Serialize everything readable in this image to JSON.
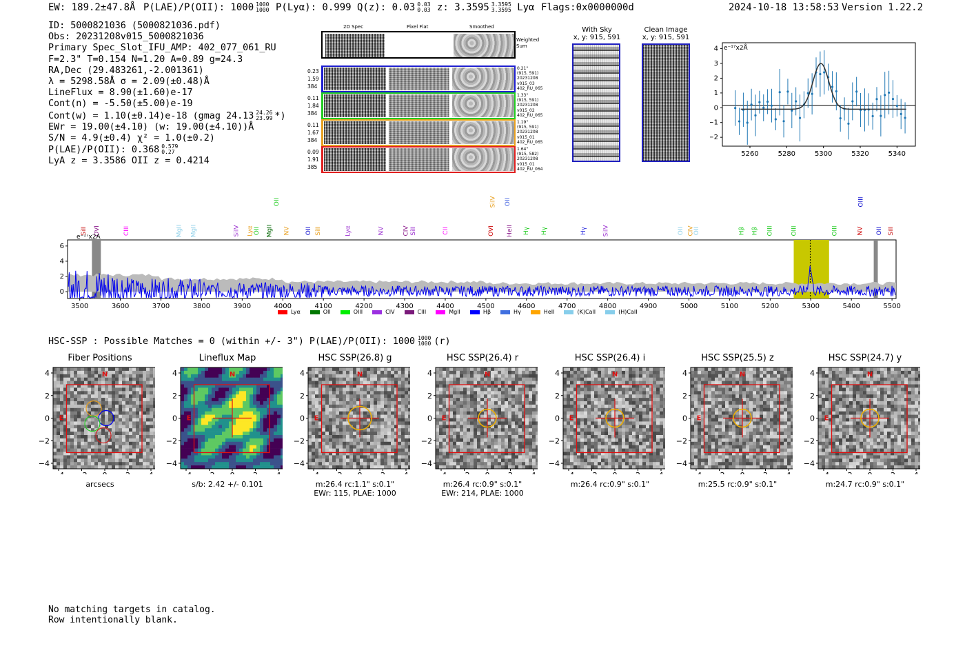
{
  "header": {
    "ew": "EW: 189.2±47.8Å",
    "plae_label": "P(LAE)/P(OII): 1000",
    "plae_hi": "1000",
    "plae_lo": "1000",
    "plya": "P(Lyα): 0.999",
    "qz_label": "Q(z): 0.03",
    "qz_hi": "0.03",
    "qz_lo": "0.03",
    "z_label": "z: 3.3595",
    "z_hi": "3.3595",
    "z_lo": "3.3595",
    "z_line": "Lyα",
    "flags": "Flags:0x0000000d",
    "timestamp": "2024-10-18 13:58:53",
    "version": "Version 1.22.2"
  },
  "info": {
    "id": "ID: 5000821036 (5000821036.pdf)",
    "obs": "Obs: 20231208v015_5000821036",
    "primary": "Primary Spec_Slot_IFU_AMP: 402_077_061_RU",
    "params": "F=2.3\"  T=0.154  N=1.20  A=0.89  g=24.3",
    "radec": "RA,Dec (29.483261,-2.001361)",
    "lambda": "λ = 5298.58Å   σ = 2.09(±0.48)Å",
    "lineflux": "LineFlux = 8.90(±1.60)e-17",
    "contn": "Cont(n) = -5.50(±5.00)e-19",
    "contw": "Cont(w) = 1.10(±0.14)e-18 (gmag 24.13",
    "contw_hi": "24.26",
    "contw_lo": "23.99",
    "contw_end": "*)",
    "ewr": "EWr = 19.00(±4.10) (w: 19.00(±4.10))Å",
    "sn": "S/N = 4.9(±0.4)  χ² = 1.0(±0.2)",
    "plae": "P(LAE)/P(OII): 0.368",
    "plae_hi": "0.579",
    "plae_lo": "0.27",
    "lya": "LyA z = 3.3586  OII z = 0.4214"
  },
  "cutouts": {
    "col_2d": "2D Spec",
    "col_flat": "Pixel Flat",
    "col_smooth": "Smoothed",
    "weighted": "Weighted\nSum",
    "rows": [
      {
        "left": [
          "0.23",
          "1.59",
          "384"
        ],
        "right": [
          "0.21\"",
          "(915, 591)",
          "20231208",
          "v015_03",
          "402_RU_065"
        ],
        "color": "#1f1fd0"
      },
      {
        "left": [
          "0.11",
          "1.84",
          "384"
        ],
        "right": [
          "1.33\"",
          "(915, 591)",
          "20231208",
          "v015_02",
          "402_RU_065"
        ],
        "color": "#22cc22"
      },
      {
        "left": [
          "0.11",
          "1.67",
          "384"
        ],
        "right": [
          "1.19\"",
          "(915, 591)",
          "20231208",
          "v015_01",
          "402_RU_065"
        ],
        "color": "#e8a020"
      },
      {
        "left": [
          "0.09",
          "1.91",
          "385"
        ],
        "right": [
          "1.64\"",
          "(915, 582)",
          "20231208",
          "v015_01",
          "402_RU_064"
        ],
        "color": "#e02020"
      }
    ]
  },
  "sky": {
    "with_sky_title": "With Sky",
    "with_sky_xy": "x, y: 915, 591",
    "clean_title": "Clean Image",
    "clean_xy": "x, y: 915, 591"
  },
  "zoom_chart": {
    "unit": "e⁻¹⁷x2Å",
    "x_ticks": [
      "5260",
      "5280",
      "5300",
      "5320",
      "5340"
    ],
    "y_ticks": [
      "4",
      "3",
      "2",
      "1",
      "0",
      "−1",
      "−2"
    ]
  },
  "chart_data": {
    "type": "line",
    "title": "",
    "unit_label": "e⁻¹⁷x2Å",
    "xlim": [
      3470,
      5510
    ],
    "ylim": [
      -0.9,
      6.8
    ],
    "x_ticks": [
      3500,
      3600,
      3700,
      3800,
      3900,
      4000,
      4100,
      4200,
      4300,
      4400,
      4500,
      4600,
      4700,
      4800,
      4900,
      5000,
      5100,
      5200,
      5300,
      5400,
      5500
    ],
    "y_ticks": [
      0,
      2,
      4,
      6
    ],
    "highlight_band": [
      5258,
      5345
    ],
    "line_center": 5298.6,
    "series": [
      {
        "name": "spectrum",
        "color": "#0000ee",
        "peak": 3.1
      },
      {
        "name": "error",
        "color": "#bbbbbb"
      }
    ],
    "line_labels": [
      {
        "name": "SiII",
        "x": 3508,
        "color": "#cc2222",
        "tier": 1
      },
      {
        "name": "OVI",
        "x": 3538,
        "color": "#8b1a8b",
        "tier": 1
      },
      {
        "name": "CIII",
        "x": 3612,
        "color": "#ff00ff",
        "tier": 1
      },
      {
        "name": "MgII",
        "x": 3738,
        "color": "#8fd0e8",
        "tier": 1
      },
      {
        "name": "MgII",
        "x": 3773,
        "color": "#8fd0e8",
        "tier": 1
      },
      {
        "name": "SiIV",
        "x": 3880,
        "color": "#9b30d0",
        "tier": 1
      },
      {
        "name": "Lyα",
        "x": 3917,
        "color": "#e8a020",
        "tier": 1
      },
      {
        "name": "OII",
        "x": 3935,
        "color": "#22cc22",
        "tier": 1
      },
      {
        "name": "MgII",
        "x": 3960,
        "color": "#006400",
        "tier": 1
      },
      {
        "name": "OII",
        "x": 3985,
        "color": "#22cc22",
        "tier": 0
      },
      {
        "name": "NV",
        "x": 4008,
        "color": "#e8a020",
        "tier": 1
      },
      {
        "name": "OII",
        "x": 4062,
        "color": "#0000cc",
        "tier": 1
      },
      {
        "name": "SiII",
        "x": 4085,
        "color": "#e8a020",
        "tier": 1
      },
      {
        "name": "Lyα",
        "x": 4158,
        "color": "#9b30d0",
        "tier": 1
      },
      {
        "name": "NV",
        "x": 4240,
        "color": "#9b30d0",
        "tier": 1
      },
      {
        "name": "CIV",
        "x": 4300,
        "color": "#8b1a8b",
        "tier": 1
      },
      {
        "name": "SiII",
        "x": 4318,
        "color": "#9b30d0",
        "tier": 1
      },
      {
        "name": "CII",
        "x": 4400,
        "color": "#ff00ff",
        "tier": 1
      },
      {
        "name": "SiIV",
        "x": 4512,
        "color": "#e8a020",
        "tier": 0
      },
      {
        "name": "OVI",
        "x": 4508,
        "color": "#cc0000",
        "tier": 1
      },
      {
        "name": "OII",
        "x": 4552,
        "color": "#4060e0",
        "tier": 0
      },
      {
        "name": "HeII",
        "x": 4552,
        "color": "#8b1a8b",
        "tier": 1
      },
      {
        "name": "Hγ",
        "x": 4598,
        "color": "#22cc22",
        "tier": 1
      },
      {
        "name": "Hγ",
        "x": 4643,
        "color": "#22cc22",
        "tier": 1
      },
      {
        "name": "Hγ",
        "x": 4740,
        "color": "#3030e0",
        "tier": 1
      },
      {
        "name": "SiIV",
        "x": 4790,
        "color": "#9b30d0",
        "tier": 1
      },
      {
        "name": "OII",
        "x": 4978,
        "color": "#8fd0e8",
        "tier": 1
      },
      {
        "name": "CIV",
        "x": 5000,
        "color": "#e8a020",
        "tier": 1
      },
      {
        "name": "OII",
        "x": 5018,
        "color": "#8fd0e8",
        "tier": 1
      },
      {
        "name": "Hβ",
        "x": 5128,
        "color": "#22cc22",
        "tier": 1
      },
      {
        "name": "Hβ",
        "x": 5160,
        "color": "#22cc22",
        "tier": 1
      },
      {
        "name": "OIII",
        "x": 5196,
        "color": "#22cc22",
        "tier": 1
      },
      {
        "name": "OIII",
        "x": 5255,
        "color": "#22cc22",
        "tier": 1
      },
      {
        "name": "OIII",
        "x": 5355,
        "color": "#22cc22",
        "tier": 1
      },
      {
        "name": "NV",
        "x": 5420,
        "color": "#cc0000",
        "tier": 1
      },
      {
        "name": "OIII",
        "x": 5420,
        "color": "#0000cc",
        "tier": 0
      },
      {
        "name": "OII",
        "x": 5468,
        "color": "#0000cc",
        "tier": 1
      },
      {
        "name": "SiII",
        "x": 5495,
        "color": "#cc2222",
        "tier": 1
      }
    ],
    "legend": [
      {
        "name": "Lyα",
        "color": "#ff0000"
      },
      {
        "name": "OII",
        "color": "#007700"
      },
      {
        "name": "OIII",
        "color": "#00ee00"
      },
      {
        "name": "CIV",
        "color": "#9b30e0"
      },
      {
        "name": "CIII",
        "color": "#7a1a7a"
      },
      {
        "name": "MgII",
        "color": "#ff00ff"
      },
      {
        "name": "Hβ",
        "color": "#0000ff"
      },
      {
        "name": "Hγ",
        "color": "#4070e0"
      },
      {
        "name": "HeII",
        "color": "#ffa500"
      },
      {
        "name": "(K)CaII",
        "color": "#87ceeb"
      },
      {
        "name": "(H)CaII",
        "color": "#87ceeb"
      }
    ]
  },
  "hsc": {
    "summary": "HSC-SSP : Possible Matches = 0 (within +/- 3\")  P(LAE)/P(OII): 1000",
    "summary_hi": "1000",
    "summary_lo": "1000",
    "summary_end": "(r)",
    "panels": [
      {
        "title": "Fiber Positions",
        "caption": "arcsecs",
        "caption2": ""
      },
      {
        "title": "Lineflux Map",
        "caption": "s/b: 2.42 +/- 0.101",
        "caption2": ""
      },
      {
        "title": "HSC SSP(26.8) g",
        "caption": "m:26.4 rc:1.1\"  s:0.1\"",
        "caption2": "EWr: 115, PLAE: 1000"
      },
      {
        "title": "HSC SSP(26.4) r",
        "caption": "m:26.4 rc:0.9\"  s:0.1\"",
        "caption2": "EWr: 214, PLAE: 1000"
      },
      {
        "title": "HSC SSP(26.4) i",
        "caption": "m:26.4 rc:0.9\"  s:0.1\"",
        "caption2": ""
      },
      {
        "title": "HSC SSP(25.5) z",
        "caption": "m:25.5 rc:0.9\"  s:0.1\"",
        "caption2": ""
      },
      {
        "title": "HSC SSP(24.7) y",
        "caption": "m:24.7 rc:0.9\"  s:0.1\"",
        "caption2": ""
      }
    ],
    "axis_ticks": [
      "4",
      "2",
      "0",
      "−2",
      "−4"
    ],
    "x_axis_ticks": [
      "−4",
      "−2",
      "0",
      "2",
      "4"
    ],
    "north": "N",
    "east": "E"
  },
  "footer": {
    "line1": "No matching targets in catalog.",
    "line2": "Row intentionally blank."
  }
}
